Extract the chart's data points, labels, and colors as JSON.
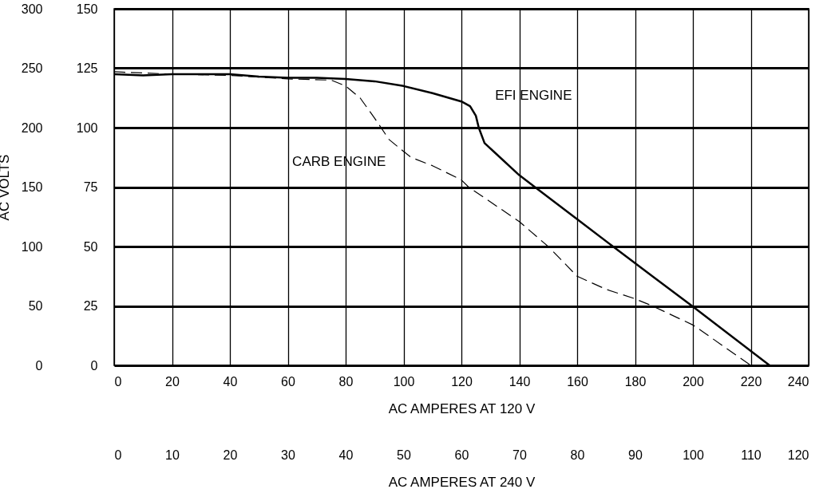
{
  "chart_data": {
    "type": "line",
    "xlabel": "AC AMPERES AT 120 V",
    "x2label": "AC AMPERES AT 240 V",
    "ylabel": "AC VOLTS",
    "xlim": [
      0,
      240
    ],
    "xticks": [
      0,
      20,
      40,
      60,
      80,
      100,
      120,
      140,
      160,
      180,
      200,
      220,
      240
    ],
    "x2lim": [
      0,
      120
    ],
    "x2ticks": [
      0,
      10,
      20,
      30,
      40,
      50,
      60,
      70,
      80,
      90,
      100,
      110,
      120
    ],
    "ylim": [
      0,
      300
    ],
    "yticks": [
      0,
      50,
      100,
      150,
      200,
      250,
      300
    ],
    "y2lim": [
      0,
      150
    ],
    "y2ticks": [
      0,
      25,
      50,
      75,
      100,
      125,
      150
    ],
    "grid": true,
    "series": [
      {
        "name": "EFI ENGINE",
        "color": "#000000",
        "line_style": "solid",
        "x": [
          0,
          10,
          20,
          30,
          40,
          50,
          60,
          70,
          80,
          90,
          100,
          110,
          120,
          123,
          125,
          126,
          128,
          132,
          140,
          145.4,
          160,
          172.4,
          186,
          199.7,
          226.5
        ],
        "values": [
          245,
          244,
          245,
          245,
          245,
          243,
          242,
          242,
          241,
          239,
          235,
          229,
          222,
          218,
          210,
          200,
          187,
          178,
          160,
          150,
          123,
          100,
          75,
          50,
          0
        ]
      },
      {
        "name": "CARB ENGINE",
        "color": "#000000",
        "line_style": "dashed",
        "x": [
          0,
          20,
          40,
          60,
          75,
          80,
          85,
          90,
          95,
          100,
          102.6,
          110,
          120,
          122.5,
          140,
          150,
          160,
          170,
          180,
          186,
          200,
          203,
          220
        ],
        "values": [
          247,
          245,
          244,
          241,
          240,
          235,
          225,
          208,
          190,
          180,
          175,
          168,
          156,
          150,
          121,
          100,
          75,
          64,
          56,
          50,
          34,
          29,
          0
        ]
      }
    ]
  }
}
